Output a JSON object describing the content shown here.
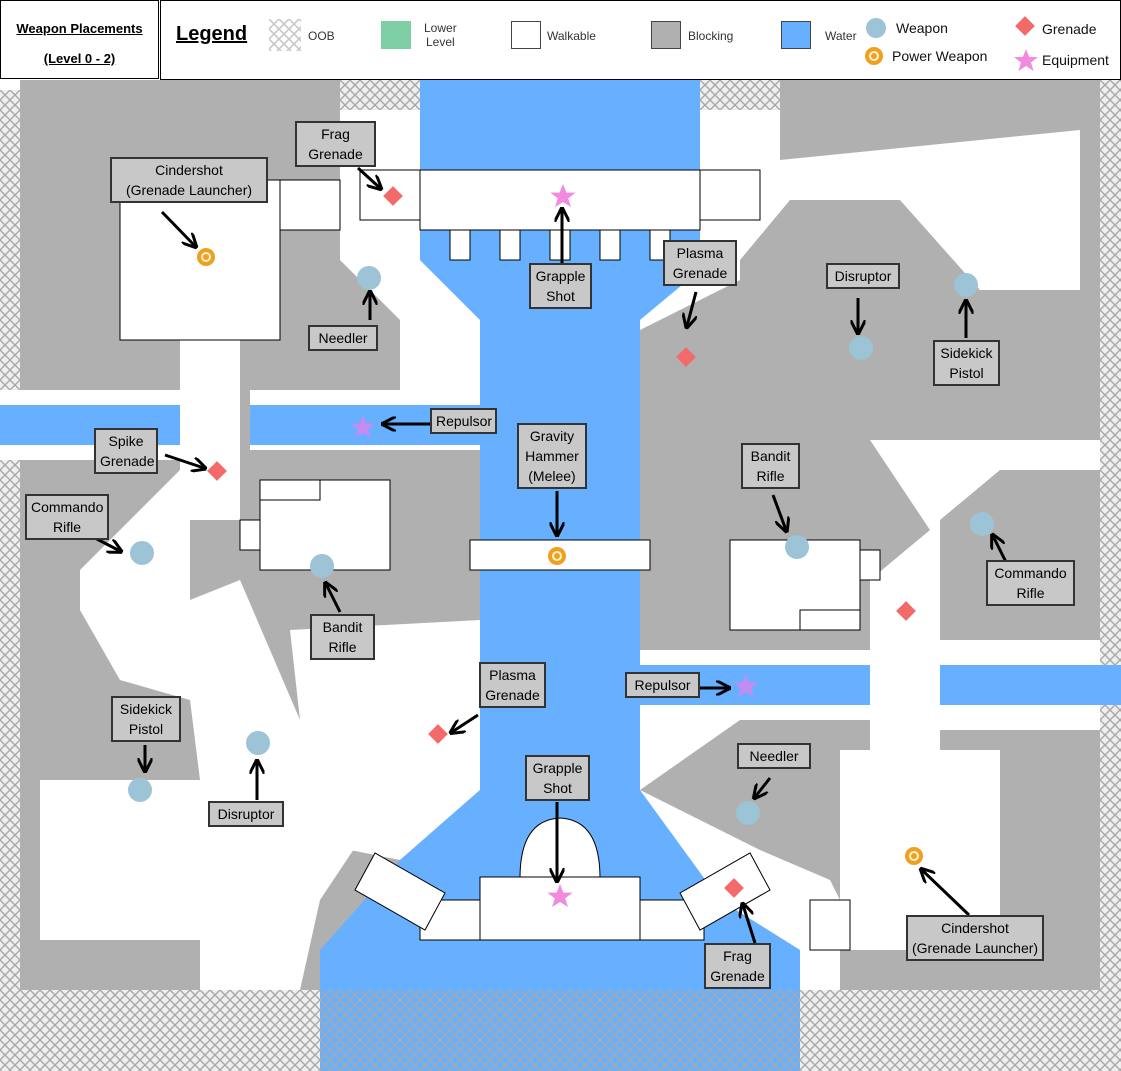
{
  "title": {
    "line1": "Weapon Placements",
    "line2": "(Level 0 - 2)"
  },
  "legend": {
    "title": "Legend",
    "items": [
      {
        "key": "oob",
        "label": "OOB"
      },
      {
        "key": "lower",
        "label": "Lower\nLevel",
        "color": "#7fcfa4"
      },
      {
        "key": "walkable",
        "label": "Walkable",
        "color": "#ffffff"
      },
      {
        "key": "blocking",
        "label": "Blocking",
        "color": "#b0b0b0"
      },
      {
        "key": "water",
        "label": "Water",
        "color": "#66b0ff"
      },
      {
        "key": "weapon",
        "label": "Weapon",
        "color": "#9cc3d6"
      },
      {
        "key": "power",
        "label": "Power Weapon",
        "color": "#f0a020"
      },
      {
        "key": "grenade",
        "label": "Grenade",
        "color": "#f26a6a"
      },
      {
        "key": "equipment",
        "label": "Equipment",
        "color": "#f28ae0"
      }
    ]
  },
  "labels": [
    {
      "id": "frag-top",
      "text": "Frag\nGrenade"
    },
    {
      "id": "cindershot-top",
      "text": "Cindershot\n(Grenade Launcher)"
    },
    {
      "id": "needler-left",
      "text": "Needler"
    },
    {
      "id": "grapple-top",
      "text": "Grapple\nShot"
    },
    {
      "id": "plasma-top",
      "text": "Plasma\nGrenade"
    },
    {
      "id": "disruptor-right",
      "text": "Disruptor"
    },
    {
      "id": "sidekick-right",
      "text": "Sidekick\nPistol"
    },
    {
      "id": "repulsor-left",
      "text": "Repulsor"
    },
    {
      "id": "spike",
      "text": "Spike\nGrenade"
    },
    {
      "id": "gravity-hammer",
      "text": "Gravity\nHammer\n(Melee)"
    },
    {
      "id": "commando-left",
      "text": "Commando\nRifle"
    },
    {
      "id": "bandit-left",
      "text": "Bandit\nRifle"
    },
    {
      "id": "bandit-right",
      "text": "Bandit\nRifle"
    },
    {
      "id": "commando-right",
      "text": "Commando\nRifle"
    },
    {
      "id": "plasma-bottom",
      "text": "Plasma\nGrenade"
    },
    {
      "id": "repulsor-right",
      "text": "Repulsor"
    },
    {
      "id": "sidekick-left",
      "text": "Sidekick\nPistol"
    },
    {
      "id": "disruptor-left",
      "text": "Disruptor"
    },
    {
      "id": "needler-right",
      "text": "Needler"
    },
    {
      "id": "grapple-bottom",
      "text": "Grapple\nShot"
    },
    {
      "id": "frag-bottom",
      "text": "Frag\nGrenade"
    },
    {
      "id": "cindershot-bottom",
      "text": "Cindershot\n(Grenade Launcher)"
    }
  ]
}
